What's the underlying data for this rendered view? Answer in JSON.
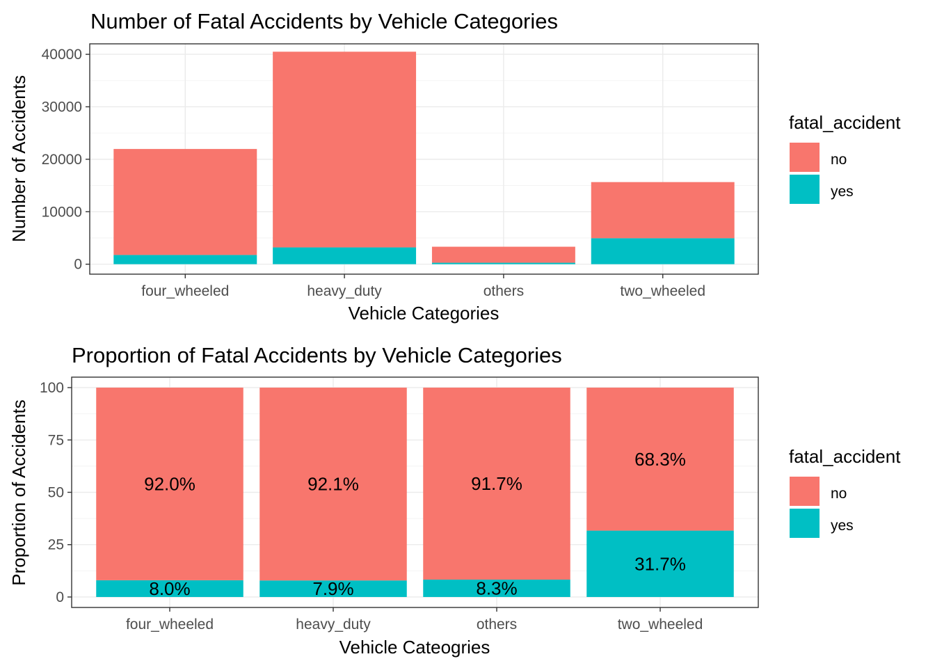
{
  "chart_data": [
    {
      "type": "bar",
      "stacked": true,
      "title": "Number of Fatal Accidents by Vehicle Categories",
      "xlabel": "Vehicle Categories",
      "ylabel": "Number of Accidents",
      "categories": [
        "four_wheeled",
        "heavy_duty",
        "others",
        "two_wheeled"
      ],
      "series": [
        {
          "name": "no",
          "values": [
            20200,
            37300,
            3050,
            10700
          ],
          "color": "#F8766D"
        },
        {
          "name": "yes",
          "values": [
            1760,
            3200,
            280,
            4950
          ],
          "color": "#00BFC4"
        }
      ],
      "ylim": [
        -1900,
        42000
      ],
      "yticks": [
        0,
        10000,
        20000,
        30000,
        40000
      ],
      "ytick_labels": [
        "0",
        "10000",
        "20000",
        "30000",
        "40000"
      ],
      "legend": {
        "title": "fatal_accident",
        "labels": [
          "no",
          "yes"
        ],
        "position": "right"
      },
      "grid": true
    },
    {
      "type": "bar",
      "stacked": true,
      "title": "Proportion of Fatal Accidents by Vehicle Categories",
      "xlabel": "Vehicle Cateogries",
      "ylabel": "Proportion of Accidents",
      "categories": [
        "four_wheeled",
        "heavy_duty",
        "others",
        "two_wheeled"
      ],
      "series": [
        {
          "name": "no",
          "values": [
            92.0,
            92.1,
            91.7,
            68.3
          ],
          "labels": [
            "92.0%",
            "92.1%",
            "91.7%",
            "68.3%"
          ],
          "color": "#F8766D"
        },
        {
          "name": "yes",
          "values": [
            8.0,
            7.9,
            8.3,
            31.7
          ],
          "labels": [
            "8.0%",
            "7.9%",
            "8.3%",
            "31.7%"
          ],
          "color": "#00BFC4"
        }
      ],
      "ylim": [
        -5,
        105
      ],
      "yticks": [
        0,
        25,
        50,
        75,
        100
      ],
      "ytick_labels": [
        "0",
        "25",
        "50",
        "75",
        "100"
      ],
      "legend": {
        "title": "fatal_accident",
        "labels": [
          "no",
          "yes"
        ],
        "position": "right"
      },
      "grid": true
    }
  ]
}
